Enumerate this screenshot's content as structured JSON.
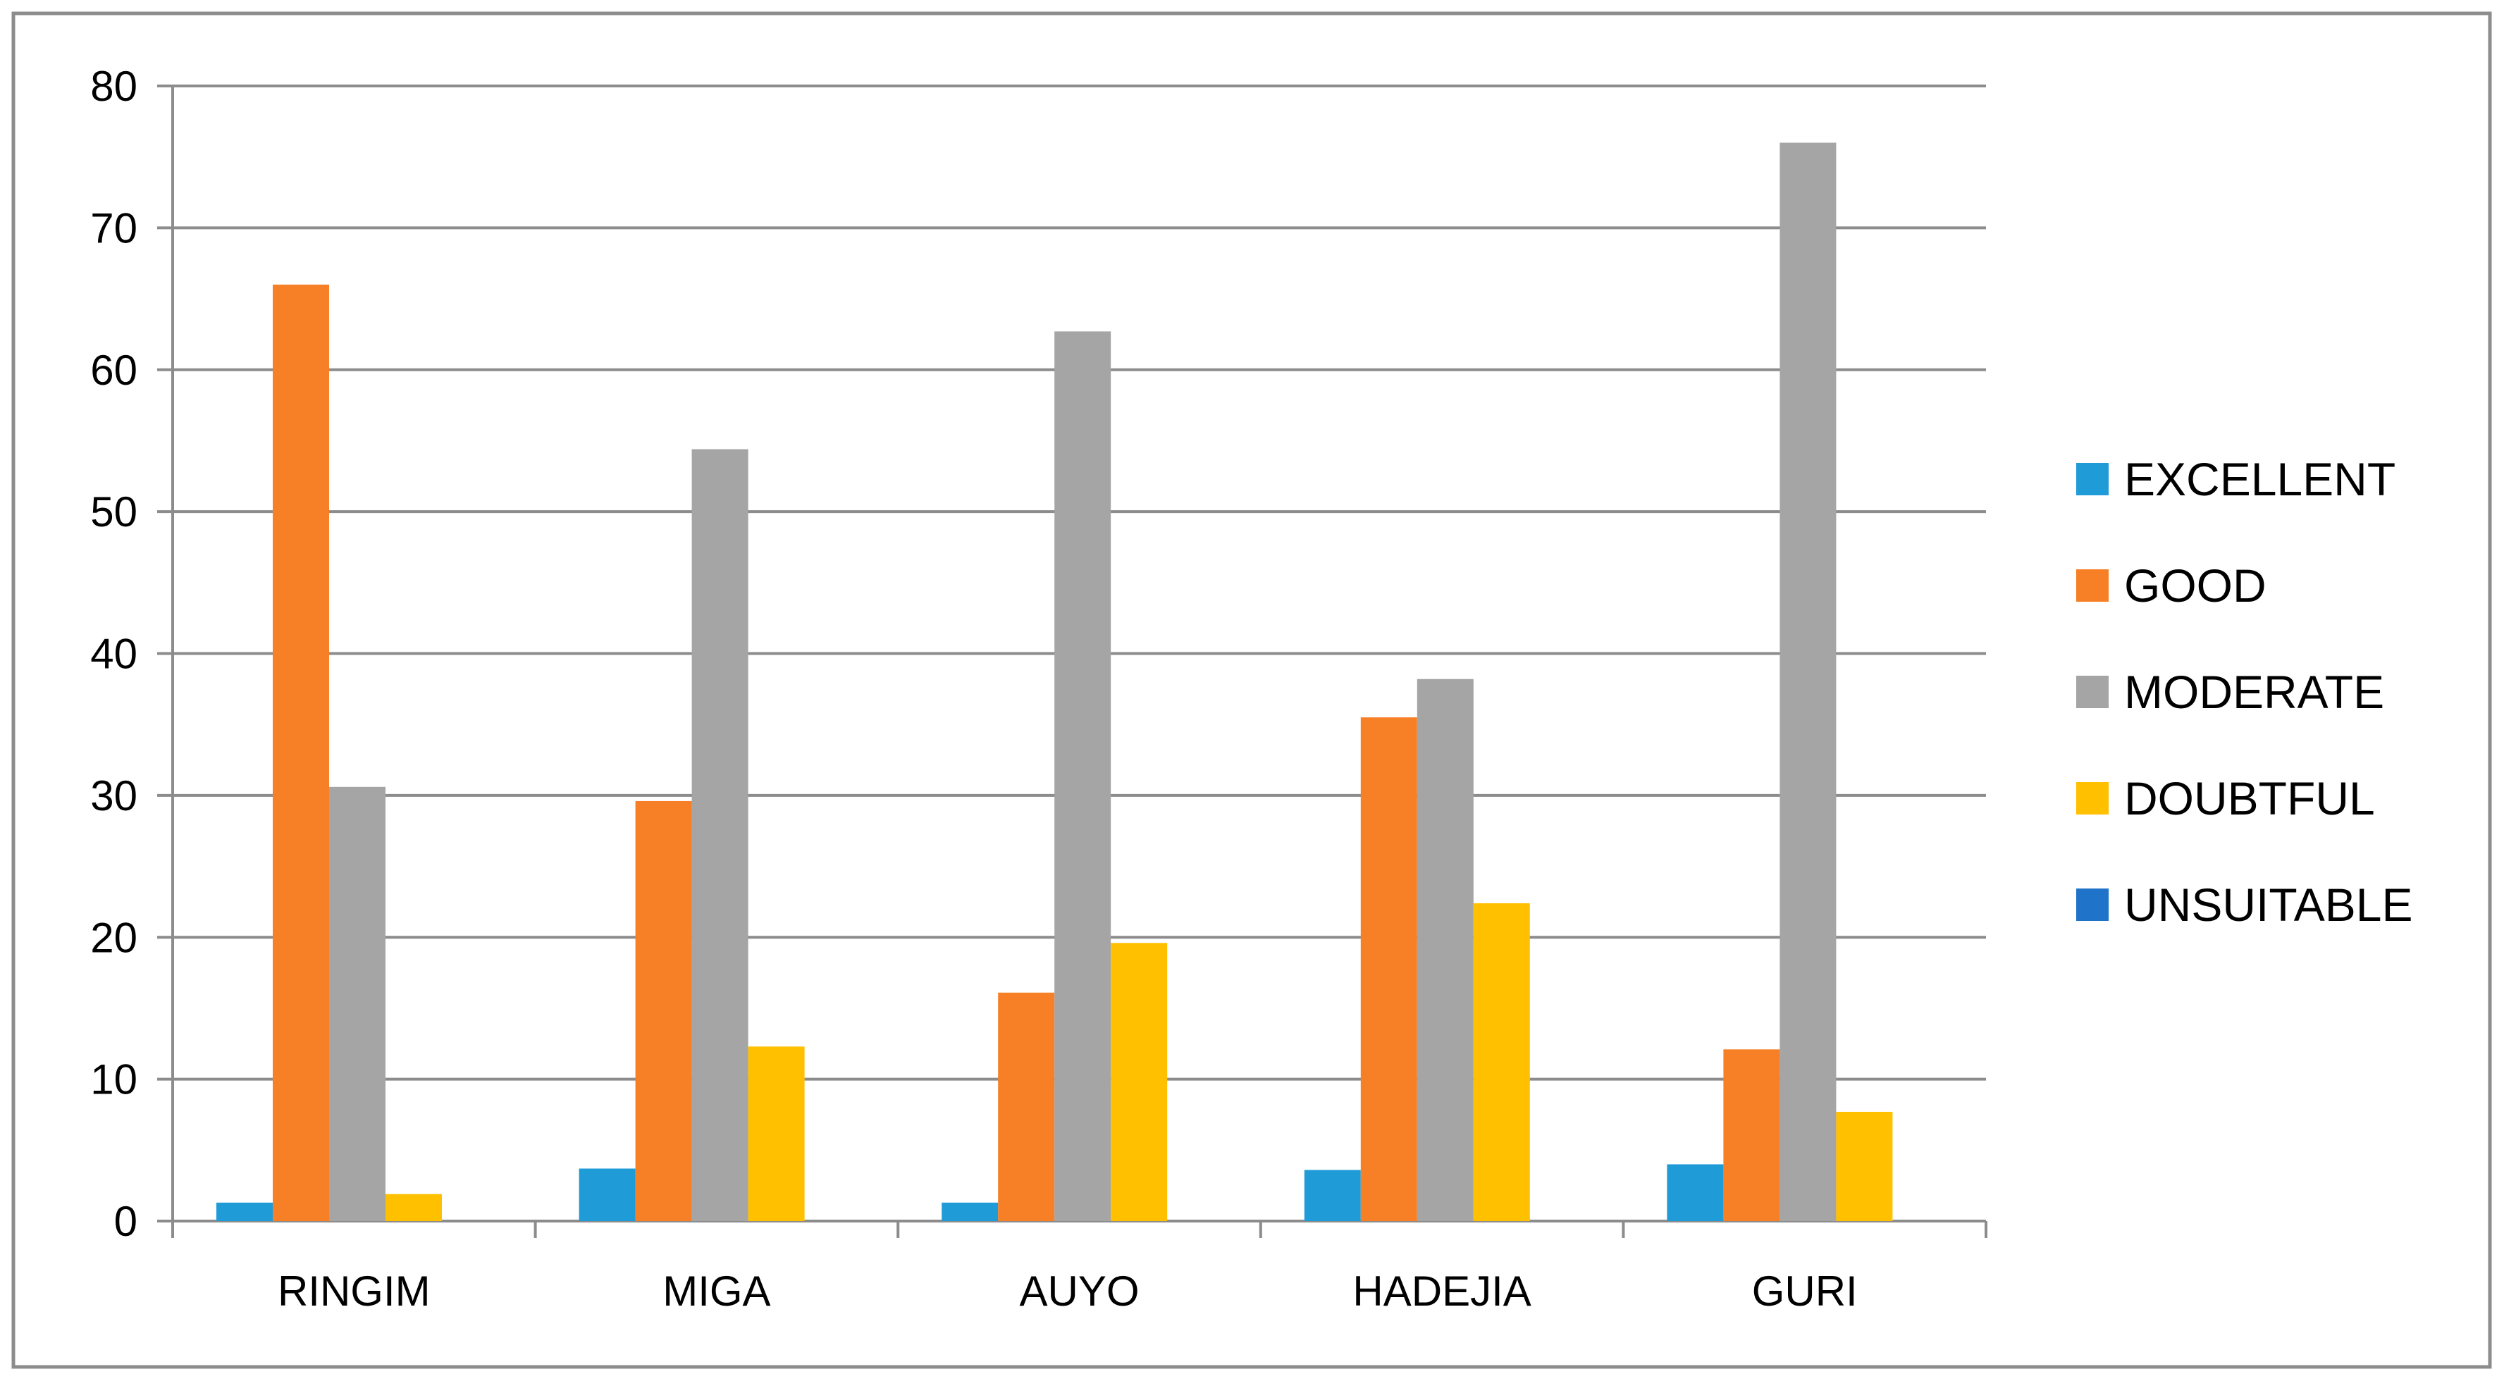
{
  "chart_data": {
    "type": "bar",
    "title": "",
    "xlabel": "",
    "ylabel": "",
    "ylim": [
      0,
      80
    ],
    "yticks": [
      0,
      10,
      20,
      30,
      40,
      50,
      60,
      70,
      80
    ],
    "grid": true,
    "legend_position": "right",
    "categories": [
      "RINGIM",
      "MIGA",
      "AUYO",
      "HADEJIA",
      "GURI"
    ],
    "series": [
      {
        "name": "EXCELLENT",
        "color": "#1F9BD7",
        "values": [
          1.3,
          3.7,
          1.3,
          3.6,
          4.0
        ]
      },
      {
        "name": "GOOD",
        "color": "#F77F26",
        "values": [
          66.0,
          29.6,
          16.1,
          35.5,
          12.1
        ]
      },
      {
        "name": "MODERATE",
        "color": "#A5A5A5",
        "values": [
          30.6,
          54.4,
          62.7,
          38.2,
          76.0
        ]
      },
      {
        "name": "DOUBTFUL",
        "color": "#FFC000",
        "values": [
          1.9,
          12.3,
          19.6,
          22.4,
          7.7
        ]
      },
      {
        "name": "UNSUITABLE",
        "color": "#1F73C8",
        "values": [
          0,
          0,
          0,
          0,
          0
        ]
      }
    ]
  }
}
